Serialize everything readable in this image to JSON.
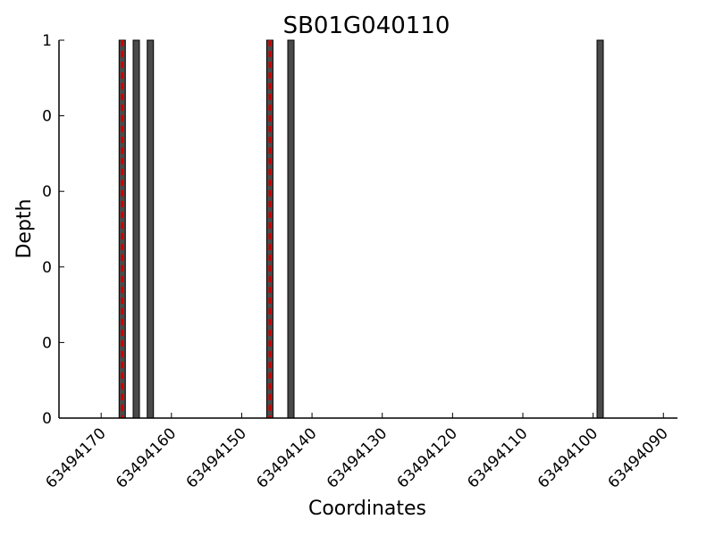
{
  "chart_data": {
    "type": "bar",
    "title": "SB01G040110",
    "xlabel": "Coordinates",
    "ylabel": "Depth",
    "x_axis_reversed": true,
    "xlim": [
      63494176,
      63494088
    ],
    "ylim": [
      0,
      1
    ],
    "x_ticks": [
      63494170,
      63494160,
      63494150,
      63494140,
      63494130,
      63494120,
      63494110,
      63494100,
      63494090
    ],
    "y_ticks": [
      {
        "value": 0.0,
        "label": "0"
      },
      {
        "value": 0.2,
        "label": "0"
      },
      {
        "value": 0.4,
        "label": "0"
      },
      {
        "value": 0.6,
        "label": "0"
      },
      {
        "value": 0.8,
        "label": "0"
      },
      {
        "value": 1.0,
        "label": "1"
      }
    ],
    "bars": [
      {
        "x": 63494167,
        "depth": 1
      },
      {
        "x": 63494165,
        "depth": 1
      },
      {
        "x": 63494163,
        "depth": 1
      },
      {
        "x": 63494146,
        "depth": 1
      },
      {
        "x": 63494143,
        "depth": 1
      },
      {
        "x": 63494099,
        "depth": 1
      }
    ],
    "markers": [
      {
        "x": 63494167
      },
      {
        "x": 63494146
      }
    ],
    "bar_color": "#4a4a4a",
    "marker_color": "#cc0000",
    "grid": false,
    "legend": "none"
  }
}
